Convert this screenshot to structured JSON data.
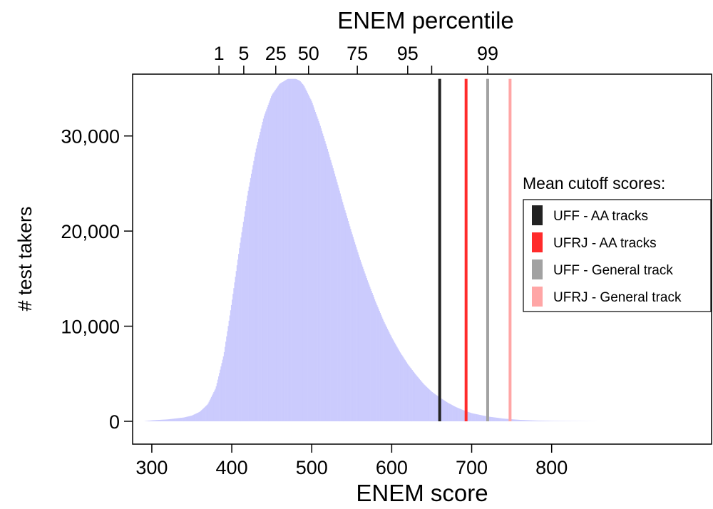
{
  "chart_data": {
    "type": "bar",
    "title": "",
    "xlabel": "ENEM score",
    "ylabel": "# test takers",
    "top_axis_label": "ENEM percentile",
    "xlim": [
      276,
      1000
    ],
    "ylim": [
      -2400,
      36500
    ],
    "x_ticks": [
      300,
      400,
      500,
      600,
      700,
      800
    ],
    "x_tick_labels": [
      "300",
      "400",
      "500",
      "600",
      "700",
      "800"
    ],
    "y_ticks": [
      0,
      10000,
      20000,
      30000
    ],
    "y_tick_labels": [
      "0",
      "10,000",
      "20,000",
      "30,000"
    ],
    "top_ticks": [
      {
        "score": 384,
        "label": "1"
      },
      {
        "score": 415,
        "label": "5"
      },
      {
        "score": 455,
        "label": "25"
      },
      {
        "score": 496,
        "label": "50"
      },
      {
        "score": 557,
        "label": "75"
      },
      {
        "score": 620,
        "label": "95"
      },
      {
        "score": 650,
        "label": ""
      },
      {
        "score": 720,
        "label": "99"
      }
    ],
    "histogram": {
      "bin_width": 1,
      "x": [
        290,
        300,
        320,
        340,
        350,
        360,
        370,
        380,
        390,
        400,
        410,
        420,
        430,
        440,
        450,
        460,
        470,
        480,
        485,
        490,
        500,
        510,
        520,
        530,
        540,
        550,
        560,
        570,
        580,
        590,
        600,
        610,
        620,
        630,
        640,
        650,
        660,
        670,
        680,
        690,
        700,
        720,
        740,
        760,
        780,
        800,
        820,
        840,
        860
      ],
      "counts": [
        0,
        100,
        200,
        400,
        600,
        1000,
        1800,
        3500,
        7000,
        12500,
        18500,
        24000,
        28500,
        32000,
        34300,
        35500,
        36000,
        36000,
        35800,
        35300,
        33600,
        31200,
        28500,
        25600,
        22600,
        19800,
        17100,
        14700,
        12500,
        10500,
        8800,
        7300,
        6000,
        4900,
        3900,
        3100,
        2500,
        1950,
        1500,
        1150,
        850,
        500,
        280,
        150,
        80,
        40,
        20,
        10,
        0
      ],
      "color": "#cbcbfd"
    },
    "series": [
      {
        "name": "UFF - AA tracks",
        "x": 660,
        "color": "#222222"
      },
      {
        "name": "UFRJ - AA tracks",
        "x": 693,
        "color": "#ff2b2b"
      },
      {
        "name": "UFF - General track",
        "x": 720,
        "color": "#a2a2a2"
      },
      {
        "name": "UFRJ - General track",
        "x": 748,
        "color": "#ffa6a6"
      }
    ],
    "cutoff_line_top": 36000,
    "legend": {
      "title": "Mean cutoff scores:",
      "placement": "right"
    },
    "grid": false
  }
}
